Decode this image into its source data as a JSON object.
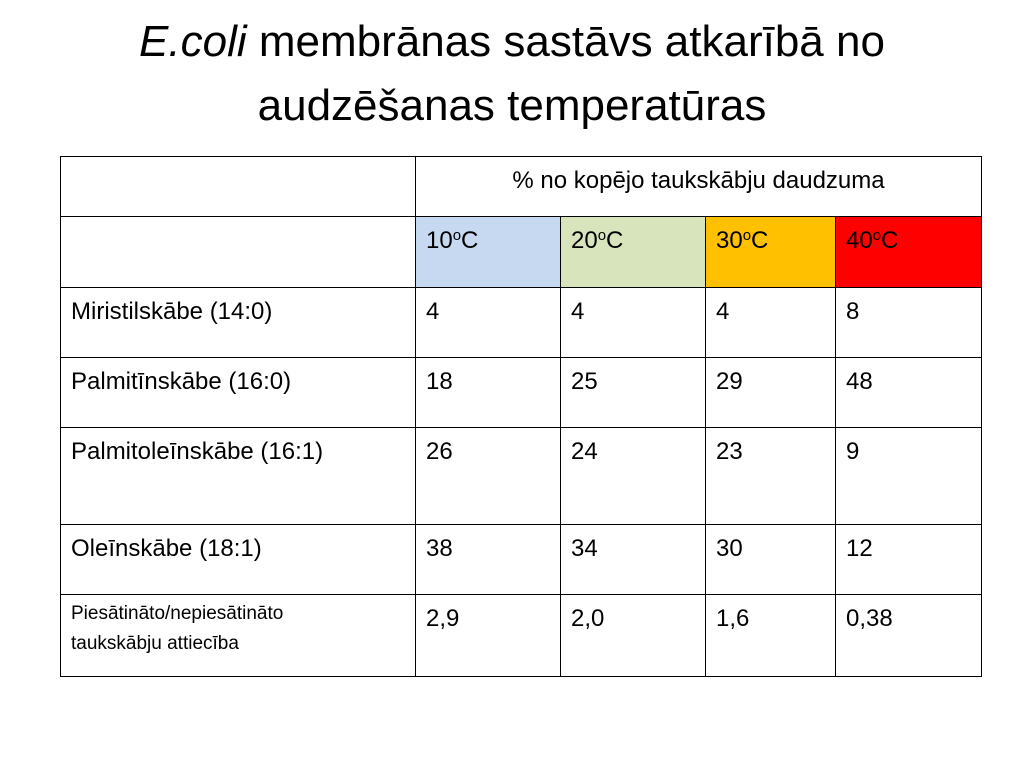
{
  "title": {
    "italic": "E.coli",
    "rest": " membrānas sastāvs atkarībā no audzēšanas temperatūras"
  },
  "table": {
    "header_span": "% no kopējo taukskābju daudzuma",
    "temperatures": [
      {
        "num": "10",
        "sup": "o",
        "unit": "C",
        "color": "#c6d9f0"
      },
      {
        "num": "20",
        "sup": "o",
        "unit": "C",
        "color": "#d7e4bc"
      },
      {
        "num": "30",
        "sup": "o",
        "unit": "C",
        "color": "#ffc000"
      },
      {
        "num": "40",
        "sup": "o",
        "unit": "C",
        "color": "#ff0000"
      }
    ],
    "rows": [
      {
        "label": "Miristilskābe (14:0)",
        "values": [
          "4",
          "4",
          "4",
          "8"
        ]
      },
      {
        "label": "Palmitīnskābe (16:0)",
        "values": [
          "18",
          "25",
          "29",
          "48"
        ]
      },
      {
        "label": "Palmitoleīnskābe (16:1)",
        "values": [
          "26",
          "24",
          "23",
          "9"
        ]
      },
      {
        "label": "Oleīnskābe (18:1)",
        "values": [
          "38",
          "34",
          "30",
          "12"
        ]
      },
      {
        "label_line1": "Piesātināto/nepiesātināto",
        "label_line2": "taukskābju attiecība",
        "values": [
          "2,9",
          "2,0",
          "1,6",
          "0,38"
        ]
      }
    ]
  }
}
